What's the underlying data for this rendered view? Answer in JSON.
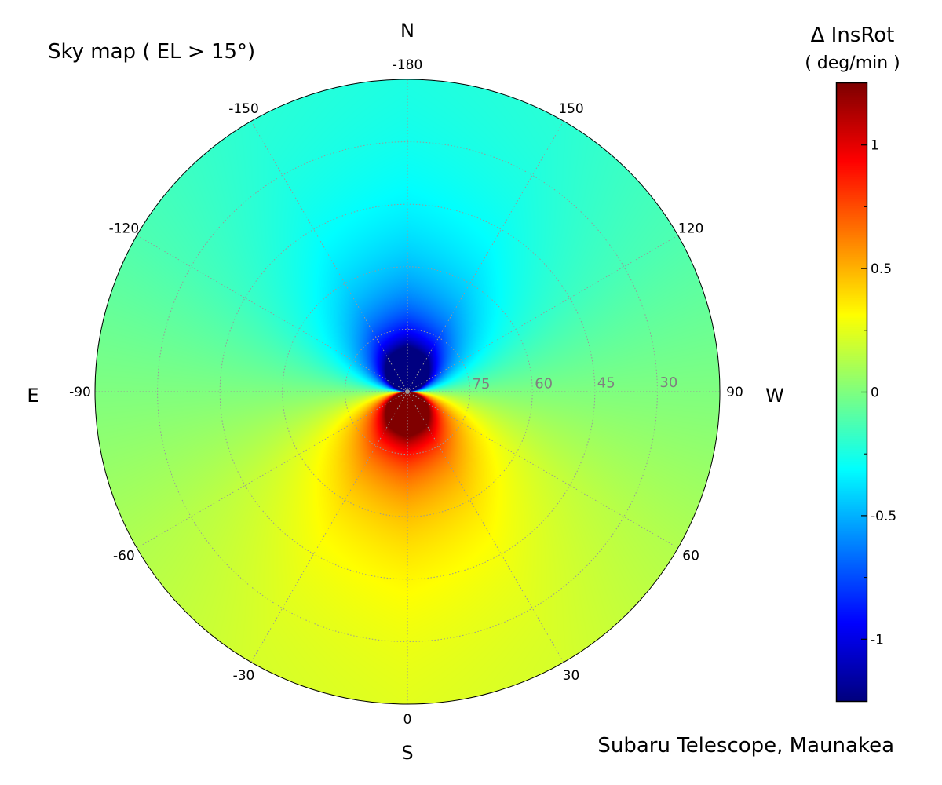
{
  "chart_data": {
    "type": "heatmap",
    "projection": "polar",
    "title": "Sky map  ( EL > 15°)",
    "footer": "Subaru Telescope, Maunakea",
    "compass": {
      "N": "N",
      "S": "S",
      "E": "E",
      "W": "W"
    },
    "azimuth_ticks": [
      "0",
      "30",
      "60",
      "90",
      "120",
      "150",
      "-180",
      "-150",
      "-120",
      "-90",
      "-60",
      "-30"
    ],
    "azimuth_tick_values": [
      0,
      30,
      60,
      90,
      120,
      150,
      180,
      -150,
      -120,
      -90,
      -60,
      -30
    ],
    "elevation_ticks": [
      "75",
      "60",
      "45",
      "30"
    ],
    "elevation_tick_values": [
      75,
      60,
      45,
      30
    ],
    "elevation_range": [
      15,
      90
    ],
    "colormap": "jet",
    "colorbar": {
      "title": "Δ InsRot",
      "unit": "( deg/min )",
      "range": [
        -1.25,
        1.25
      ],
      "ticks": [
        "1",
        "0.5",
        "0",
        "-0.5",
        "-1"
      ],
      "tick_values": [
        1,
        0.5,
        0,
        -0.5,
        -1
      ],
      "minor_tick_values": [
        0.75,
        0.25,
        -0.25,
        -0.75
      ]
    },
    "grid": true,
    "grid_elevations": [
      15,
      30,
      45,
      60,
      75,
      80,
      85,
      88
    ],
    "grid_azimuths": [
      -180,
      -150,
      -120,
      -90,
      -60,
      -30,
      0,
      30,
      60,
      90,
      120,
      150,
      180
    ],
    "values": [
      [
        -0.243,
        -0.21,
        -0.122,
        0,
        0.122,
        0.21,
        0.243,
        0.21,
        0.122,
        0,
        -0.122,
        -0.21,
        -0.243
      ],
      [
        -0.271,
        -0.235,
        -0.136,
        0,
        0.136,
        0.235,
        0.271,
        0.235,
        0.136,
        0,
        -0.136,
        -0.235,
        -0.271
      ],
      [
        -0.332,
        -0.288,
        -0.166,
        0,
        0.166,
        0.288,
        0.332,
        0.288,
        0.166,
        0,
        -0.166,
        -0.288,
        -0.332
      ],
      [
        -0.47,
        -0.407,
        -0.235,
        0,
        0.235,
        0.407,
        0.47,
        0.407,
        0.235,
        0,
        -0.235,
        -0.407,
        -0.47
      ],
      [
        -0.908,
        -0.786,
        -0.454,
        0,
        0.454,
        0.786,
        0.908,
        0.786,
        0.454,
        0,
        -0.454,
        -0.786,
        -0.908
      ],
      [
        -1.353,
        -1.172,
        -0.677,
        0,
        0.677,
        1.172,
        1.353,
        1.172,
        0.677,
        0,
        -0.677,
        -1.172,
        -1.353
      ],
      [
        -2.696,
        -2.335,
        -1.348,
        0,
        1.348,
        2.335,
        2.696,
        2.335,
        1.348,
        0,
        -1.348,
        -2.335,
        -2.696
      ],
      [
        -6.733,
        -5.831,
        -3.367,
        0,
        3.367,
        5.831,
        6.733,
        5.831,
        3.367,
        0,
        -3.367,
        -5.831,
        -6.733
      ]
    ]
  }
}
